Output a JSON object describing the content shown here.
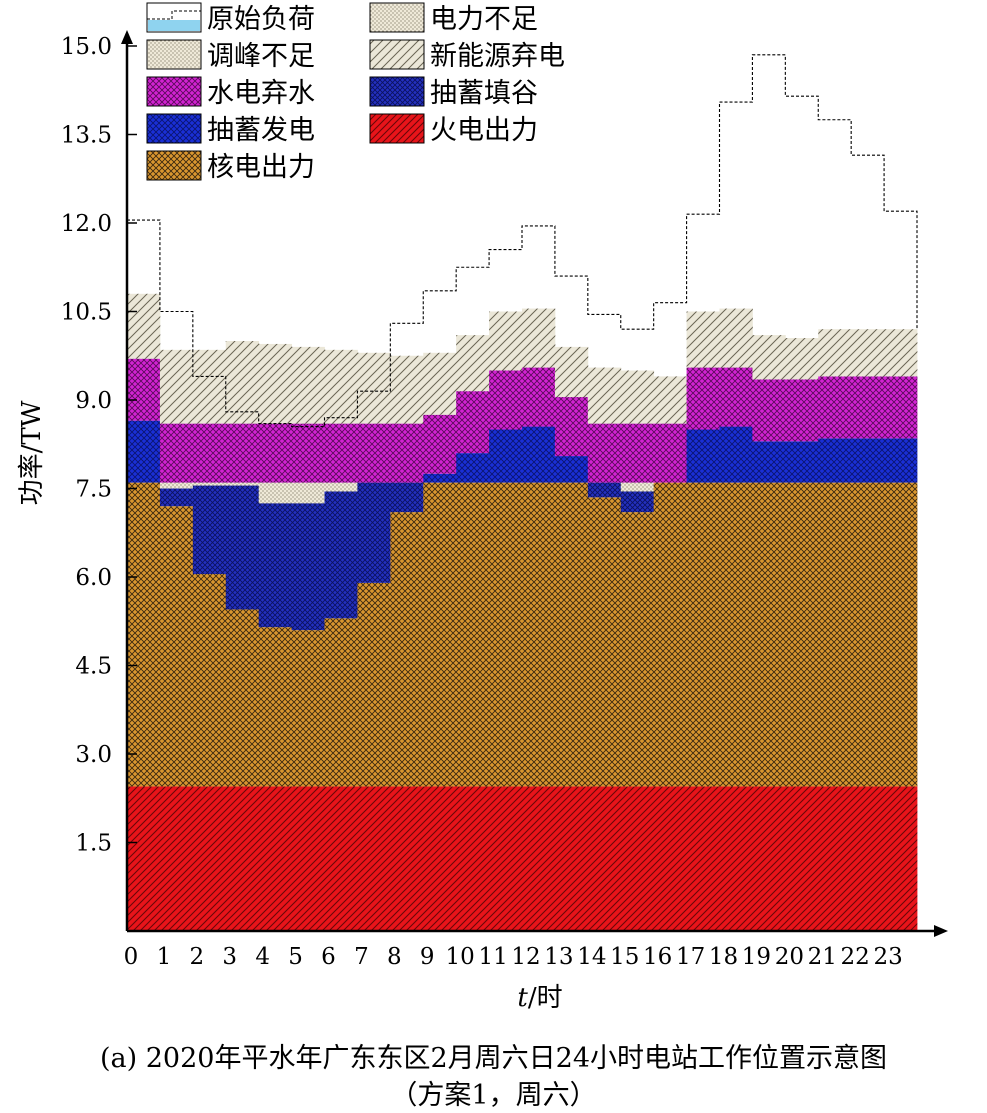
{
  "chart_data": {
    "type": "bar",
    "stacked": true,
    "x": [
      0,
      1,
      2,
      3,
      4,
      5,
      6,
      7,
      8,
      9,
      10,
      11,
      12,
      13,
      14,
      15,
      16,
      17,
      18,
      19,
      20,
      21,
      22,
      23
    ],
    "xlabel_italic": "t",
    "xlabel_unit": "/时",
    "ylabel": "功率/TW",
    "ylim": [
      0,
      15.4
    ],
    "yticks": [
      1.5,
      3.0,
      4.5,
      6.0,
      7.5,
      9.0,
      10.5,
      12.0,
      13.5,
      15.0
    ],
    "xticks": [
      "0",
      "1",
      "2",
      "3",
      "4",
      "5",
      "6",
      "7",
      "8",
      "9",
      "10",
      "11",
      "12",
      "13",
      "14",
      "15",
      "16",
      "17",
      "18",
      "19",
      "20",
      "21",
      "22",
      "23"
    ],
    "legend": {
      "position": "top-left",
      "items": [
        {
          "label": "原始负荷",
          "key": "original_load"
        },
        {
          "label": "电力不足",
          "key": "power_shortage"
        },
        {
          "label": "调峰不足",
          "key": "peak_shortage"
        },
        {
          "label": "新能源弃电",
          "key": "renewable_curtail"
        },
        {
          "label": "水电弃水",
          "key": "hydro_spill"
        },
        {
          "label": "抽蓄填谷",
          "key": "pumped_fill"
        },
        {
          "label": "抽蓄发电",
          "key": "pumped_gen"
        },
        {
          "label": "火电出力",
          "key": "thermal"
        },
        {
          "label": "核电出力",
          "key": "nuclear"
        }
      ]
    },
    "colors": {
      "thermal": "#e8141a",
      "nuclear": "#d9962f",
      "pumped_gen": "#1a2fd6",
      "pumped_fill": "#2330c0",
      "hydro_spill": "#d223d2",
      "renewable_curtail": "#e8e4d4",
      "peak_shortage": "#eae4d2",
      "power_shortage": "#efe9d8",
      "original_load": "#8fd3ef"
    },
    "series": {
      "thermal": [
        2.45,
        2.45,
        2.45,
        2.45,
        2.45,
        2.45,
        2.45,
        2.45,
        2.45,
        2.45,
        2.45,
        2.45,
        2.45,
        2.45,
        2.45,
        2.45,
        2.45,
        2.45,
        2.45,
        2.45,
        2.45,
        2.45,
        2.45,
        2.45
      ],
      "nuclear_top": [
        7.6,
        7.6,
        7.6,
        7.6,
        7.6,
        7.6,
        7.6,
        7.6,
        7.6,
        7.6,
        7.6,
        7.6,
        7.6,
        7.6,
        7.6,
        7.6,
        7.6,
        7.6,
        7.6,
        7.6,
        7.6,
        7.6,
        7.6,
        7.6
      ],
      "pumped_fill_bottom": [
        7.6,
        7.2,
        6.05,
        5.45,
        5.15,
        5.1,
        5.3,
        5.9,
        7.1,
        7.6,
        7.6,
        7.6,
        7.6,
        7.6,
        7.35,
        7.1,
        7.6,
        7.6,
        7.6,
        7.6,
        7.6,
        7.6,
        7.6,
        7.6
      ],
      "peak_shortage_top": [
        7.6,
        7.5,
        7.55,
        7.55,
        7.25,
        7.25,
        7.45,
        7.6,
        7.6,
        7.6,
        7.6,
        7.6,
        7.6,
        7.6,
        7.6,
        7.45,
        7.6,
        7.6,
        7.6,
        7.6,
        7.6,
        7.6,
        7.6,
        7.6
      ],
      "pumped_gen_top": [
        8.65,
        7.6,
        7.6,
        7.6,
        7.6,
        7.6,
        7.6,
        7.6,
        7.6,
        7.75,
        8.1,
        8.5,
        8.55,
        8.05,
        7.6,
        7.6,
        7.6,
        8.5,
        8.55,
        8.3,
        8.3,
        8.35,
        8.35,
        8.35
      ],
      "hydro_spill_top": [
        9.7,
        8.6,
        8.6,
        8.6,
        8.6,
        8.6,
        8.6,
        8.6,
        8.6,
        8.75,
        9.15,
        9.5,
        9.55,
        9.05,
        8.6,
        8.6,
        8.6,
        9.55,
        9.55,
        9.35,
        9.35,
        9.4,
        9.4,
        9.4
      ],
      "renewable_curtail_top": [
        10.8,
        9.85,
        9.85,
        10.0,
        9.95,
        9.9,
        9.85,
        9.8,
        9.75,
        9.8,
        10.1,
        10.5,
        10.55,
        9.9,
        9.55,
        9.5,
        9.4,
        10.5,
        10.55,
        10.1,
        10.05,
        10.2,
        10.2,
        10.2
      ],
      "original_load": [
        12.05,
        10.5,
        9.4,
        8.8,
        8.6,
        8.55,
        8.7,
        9.15,
        10.3,
        10.85,
        11.25,
        11.55,
        11.95,
        11.1,
        10.45,
        10.2,
        10.65,
        12.15,
        14.05,
        14.85,
        14.15,
        13.75,
        13.15,
        12.2
      ]
    }
  },
  "caption": {
    "line1": "(a) 2020年平水年广东东区2月周六日24小时电站工作位置示意图",
    "line2": "（方案1，周六）"
  }
}
